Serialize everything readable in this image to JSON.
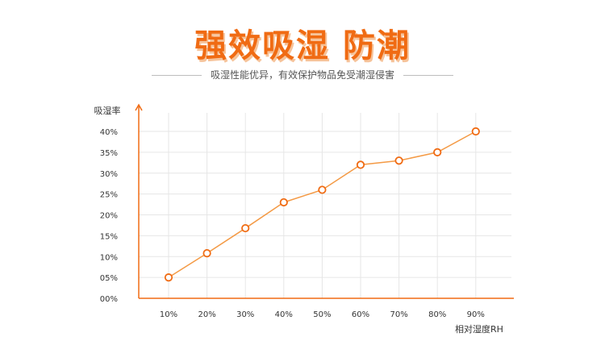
{
  "header": {
    "title": "强效吸湿 防潮",
    "subtitle": "吸湿性能优异，有效保护物品免受潮湿侵害"
  },
  "colors": {
    "accent": "#f06b13",
    "line": "#f49a45",
    "grid": "#e6e6e6"
  },
  "chart_data": {
    "type": "line",
    "title": "",
    "xlabel": "相对湿度RH",
    "ylabel": "吸湿率",
    "categories": [
      "10%",
      "20%",
      "30%",
      "40%",
      "50%",
      "60%",
      "70%",
      "80%",
      "90%"
    ],
    "values": [
      5,
      10.8,
      16.8,
      23,
      26,
      32,
      33,
      35,
      40
    ],
    "yticks": [
      "00%",
      "05%",
      "10%",
      "15%",
      "20%",
      "25%",
      "30%",
      "35%",
      "40%"
    ],
    "ylim": [
      0,
      40
    ],
    "grid": true,
    "legend": "none"
  }
}
